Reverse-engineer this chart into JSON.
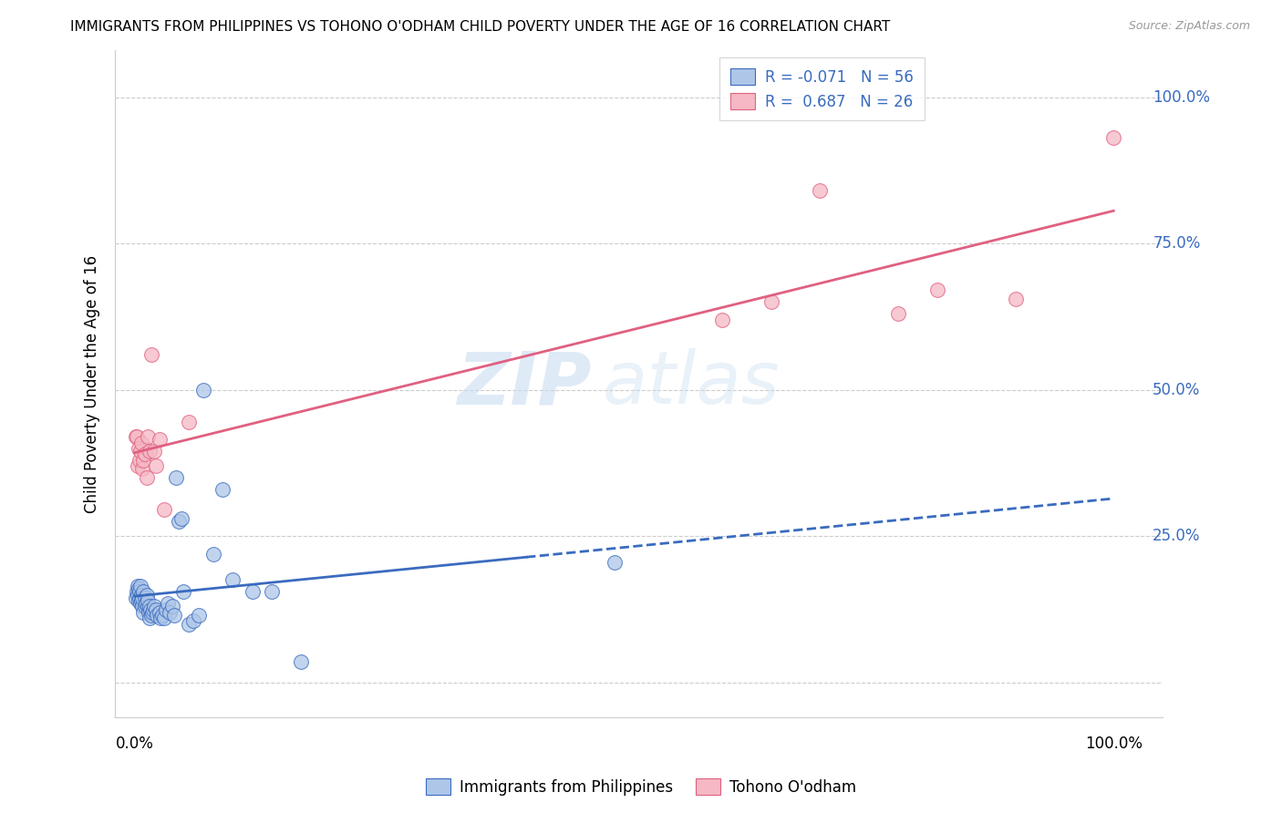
{
  "title": "IMMIGRANTS FROM PHILIPPINES VS TOHONO O'ODHAM CHILD POVERTY UNDER THE AGE OF 16 CORRELATION CHART",
  "source": "Source: ZipAtlas.com",
  "ylabel": "Child Poverty Under the Age of 16",
  "watermark_zip": "ZIP",
  "watermark_atlas": "atlas",
  "blue_R": "-0.071",
  "blue_N": "56",
  "pink_R": "0.687",
  "pink_N": "26",
  "blue_color": "#aec6e8",
  "pink_color": "#f5b8c4",
  "blue_line_color": "#3a6bbf",
  "pink_line_color": "#e06080",
  "legend_label_blue": "Immigrants from Philippines",
  "legend_label_pink": "Tohono O'odham",
  "blue_scatter_x": [
    0.001,
    0.002,
    0.003,
    0.003,
    0.004,
    0.004,
    0.005,
    0.005,
    0.006,
    0.006,
    0.007,
    0.007,
    0.008,
    0.008,
    0.009,
    0.009,
    0.01,
    0.01,
    0.011,
    0.012,
    0.013,
    0.013,
    0.014,
    0.015,
    0.015,
    0.016,
    0.017,
    0.018,
    0.019,
    0.02,
    0.022,
    0.023,
    0.025,
    0.026,
    0.028,
    0.03,
    0.032,
    0.034,
    0.036,
    0.038,
    0.04,
    0.042,
    0.045,
    0.048,
    0.05,
    0.055,
    0.06,
    0.065,
    0.07,
    0.08,
    0.09,
    0.1,
    0.12,
    0.14,
    0.17,
    0.49
  ],
  "blue_scatter_y": [
    0.145,
    0.155,
    0.165,
    0.15,
    0.14,
    0.16,
    0.155,
    0.145,
    0.165,
    0.135,
    0.15,
    0.14,
    0.13,
    0.145,
    0.155,
    0.12,
    0.13,
    0.145,
    0.135,
    0.15,
    0.13,
    0.14,
    0.12,
    0.11,
    0.13,
    0.125,
    0.115,
    0.12,
    0.125,
    0.13,
    0.125,
    0.115,
    0.12,
    0.11,
    0.115,
    0.11,
    0.125,
    0.135,
    0.12,
    0.13,
    0.115,
    0.35,
    0.275,
    0.28,
    0.155,
    0.1,
    0.105,
    0.115,
    0.5,
    0.22,
    0.33,
    0.175,
    0.155,
    0.155,
    0.035,
    0.205
  ],
  "pink_scatter_x": [
    0.001,
    0.002,
    0.003,
    0.004,
    0.005,
    0.006,
    0.007,
    0.008,
    0.009,
    0.01,
    0.012,
    0.013,
    0.015,
    0.017,
    0.02,
    0.022,
    0.025,
    0.03,
    0.055,
    0.6,
    0.65,
    0.7,
    0.78,
    0.82,
    0.9,
    1.0
  ],
  "pink_scatter_y": [
    0.42,
    0.42,
    0.37,
    0.4,
    0.38,
    0.395,
    0.41,
    0.365,
    0.38,
    0.39,
    0.35,
    0.42,
    0.395,
    0.56,
    0.395,
    0.37,
    0.415,
    0.295,
    0.445,
    0.62,
    0.65,
    0.84,
    0.63,
    0.67,
    0.655,
    0.93
  ],
  "xlim": [
    -0.02,
    1.05
  ],
  "ylim": [
    -0.06,
    1.08
  ]
}
